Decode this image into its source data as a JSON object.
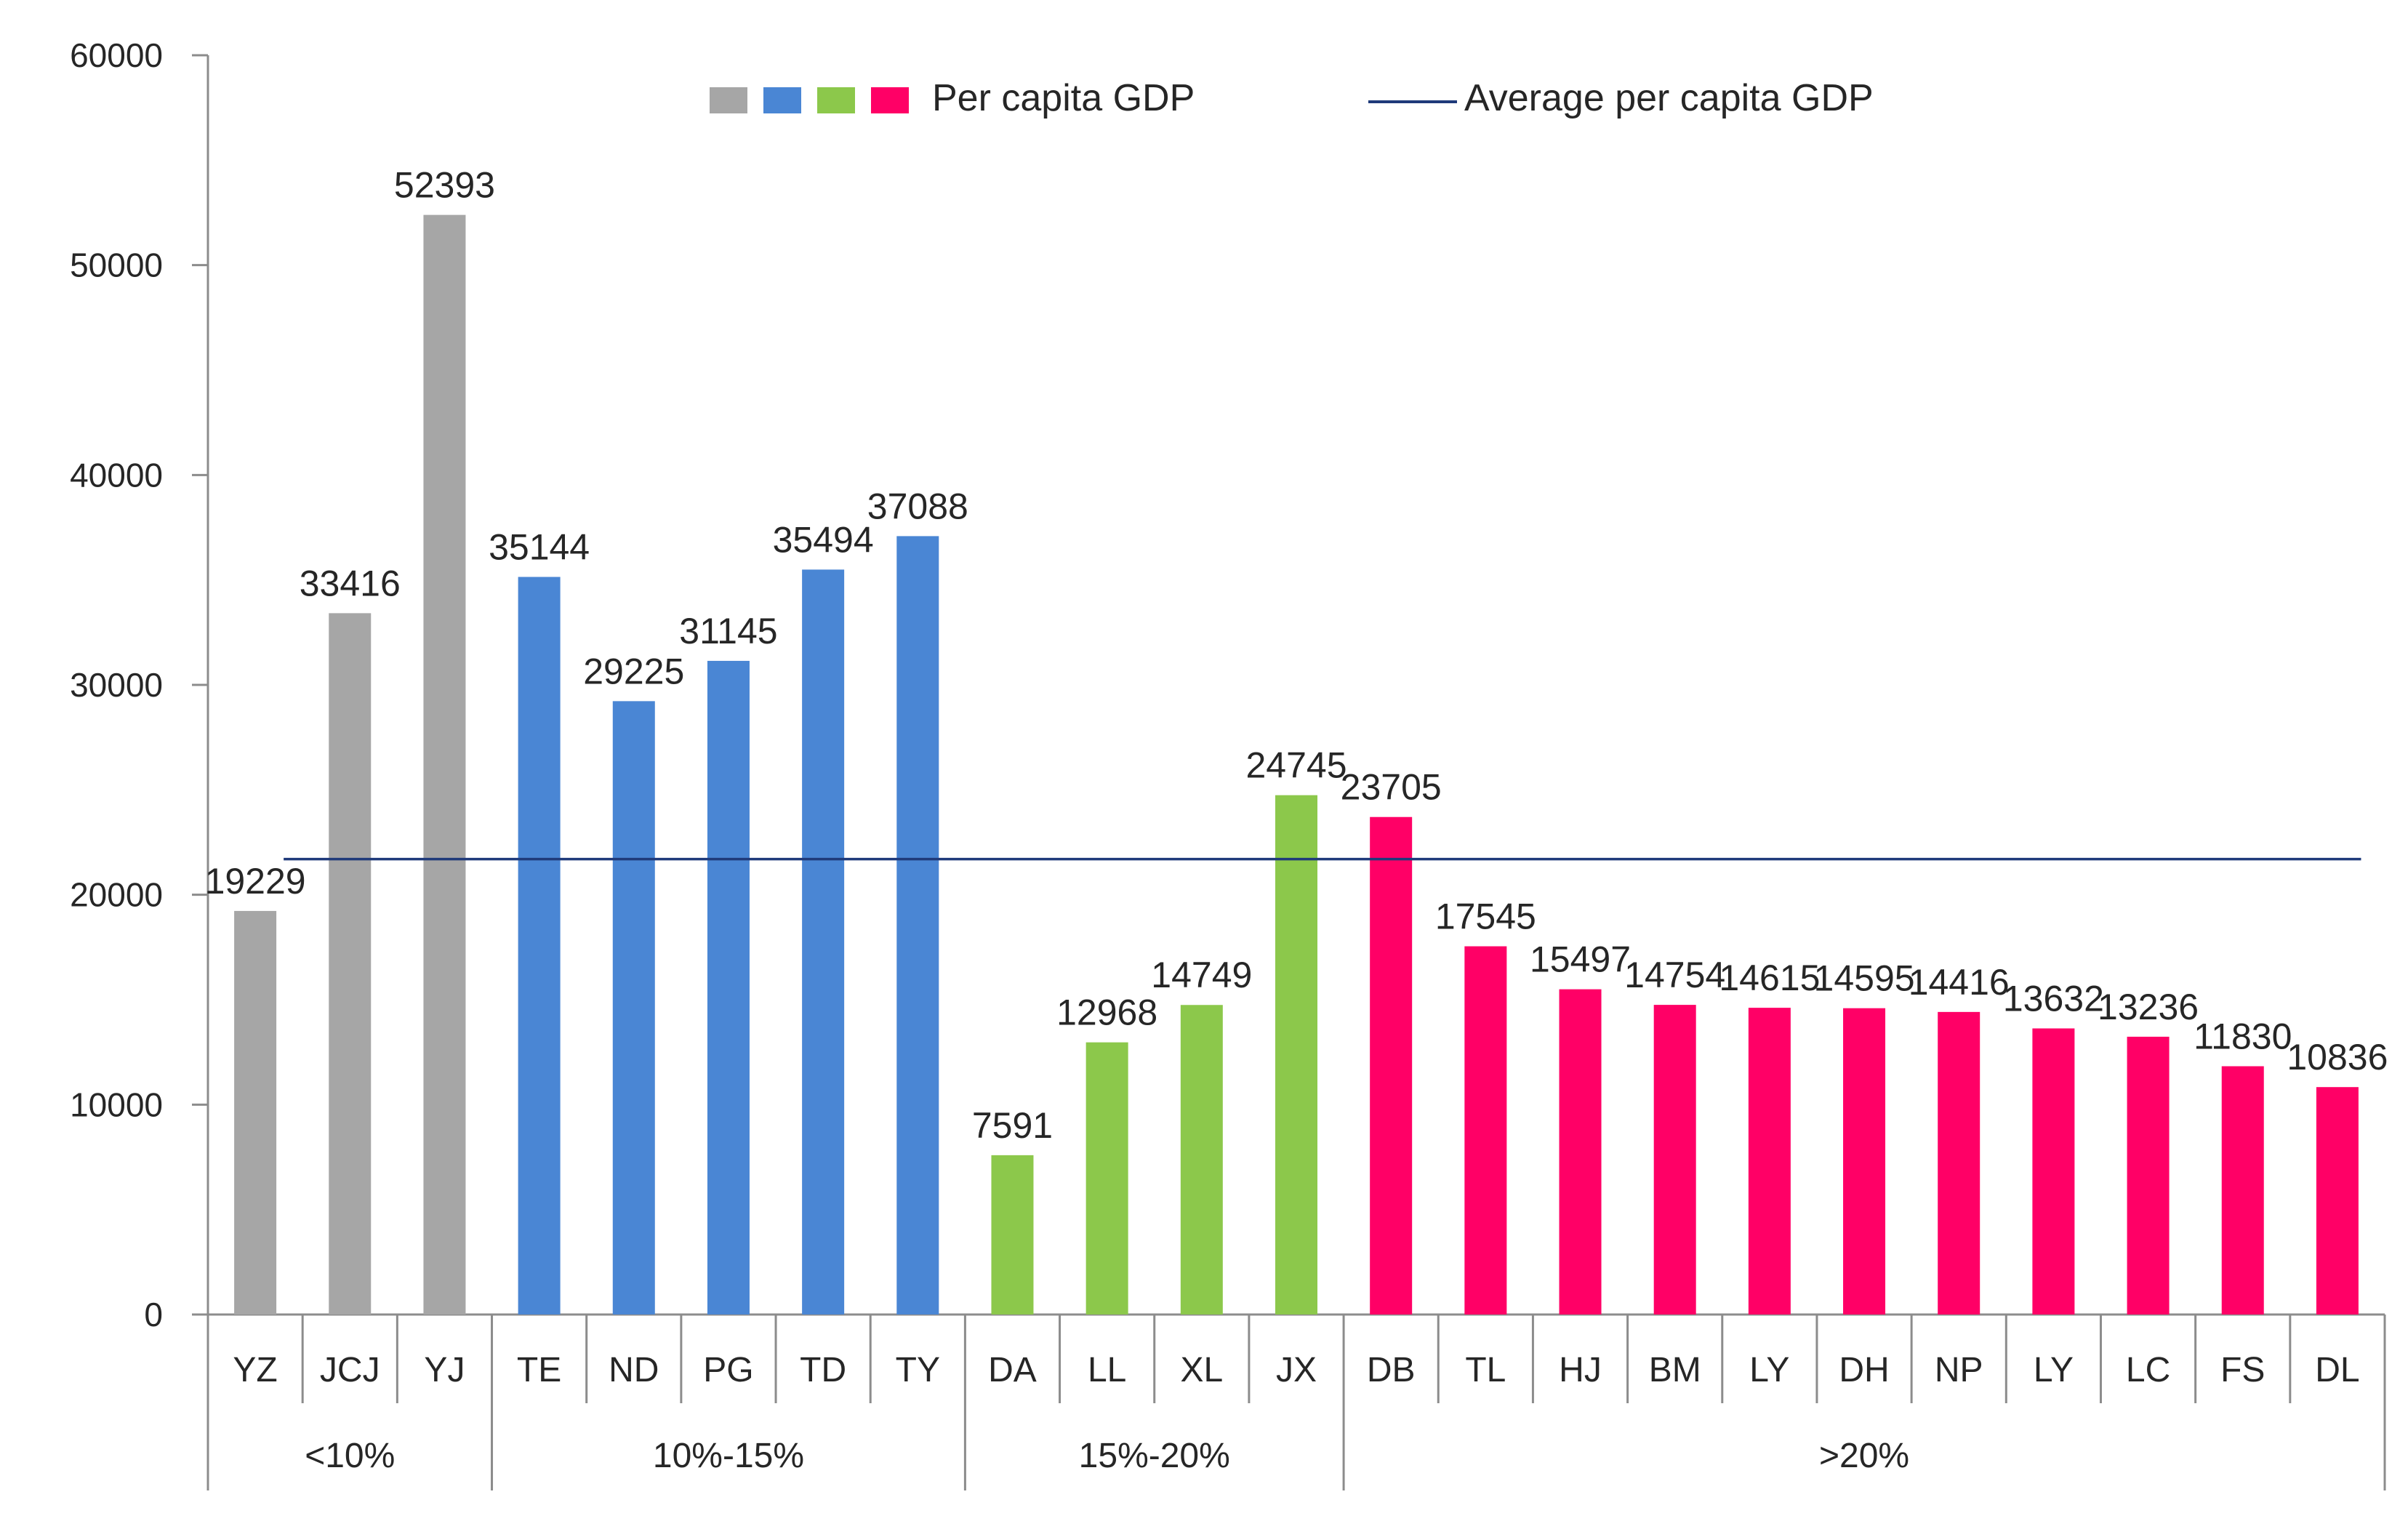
{
  "chart_data": {
    "type": "bar",
    "title": "",
    "xlabel": "",
    "ylabel": "",
    "ylim": [
      0,
      60000
    ],
    "y_ticks": [
      "0",
      "10000",
      "20000",
      "30000",
      "40000",
      "50000",
      "60000"
    ],
    "y_tick_values": [
      0,
      10000,
      20000,
      30000,
      40000,
      50000,
      60000
    ],
    "categories": [
      "YZ",
      "JCJ",
      "YJ",
      "TE",
      "ND",
      "PG",
      "TD",
      "TY",
      "DA",
      "LL",
      "XL",
      "JX",
      "DB",
      "TL",
      "HJ",
      "BM",
      "LY",
      "DH",
      "NP",
      "LY",
      "LC",
      "FS",
      "DL"
    ],
    "values": [
      19229,
      33416,
      52393,
      35144,
      29225,
      31145,
      35494,
      37088,
      7591,
      12968,
      14749,
      24745,
      23705,
      17545,
      15497,
      14754,
      14615,
      14595,
      14416,
      13632,
      13236,
      11830,
      10836
    ],
    "data_labels": [
      "19229",
      "33416",
      "52393",
      "35144",
      "29225",
      "31145",
      "35494",
      "37088",
      "7591",
      "12968",
      "14749",
      "24745",
      "23705",
      "17545",
      "15497",
      "14754",
      "14615",
      "14595",
      "14416",
      "13632",
      "13236",
      "11830",
      "10836"
    ],
    "groups": [
      {
        "label": "<10%",
        "count": 3,
        "color": "#a6a6a6"
      },
      {
        "label": "10%-15%",
        "count": 5,
        "color": "#4a86d4"
      },
      {
        "label": "15%-20%",
        "count": 4,
        "color": "#8cc84b"
      },
      {
        "label": ">20%",
        "count": 11,
        "color": "#ff0066"
      }
    ],
    "average_line": {
      "name": "Average per capita GDP",
      "value": 21700,
      "color": "#1f3a7a"
    },
    "legend": {
      "bars_label": "Per capita GDP",
      "swatch_colors": [
        "#a6a6a6",
        "#4a86d4",
        "#8cc84b",
        "#ff0066"
      ],
      "line_label": "Average per capita GDP",
      "placement": "top-center"
    },
    "grid": false
  }
}
